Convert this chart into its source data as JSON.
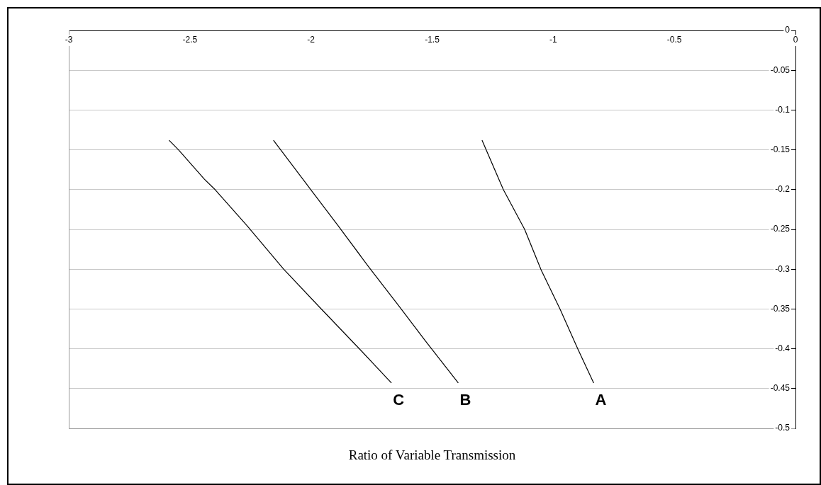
{
  "chart_data": {
    "type": "line",
    "xlabel": "Ratio of Variable Transmission",
    "series": [
      {
        "name": "A",
        "color": "#000000",
        "x": [
          -1.294,
          -1.206,
          -1.118,
          -1.05,
          -0.972,
          -0.899,
          -0.833
        ],
        "values": [
          -0.138,
          -0.2,
          -0.25,
          -0.301,
          -0.35,
          -0.4,
          -0.443
        ]
      },
      {
        "name": "B",
        "color": "#000000",
        "x": [
          -2.155,
          -2.001,
          -1.889,
          -1.762,
          -1.635,
          -1.528,
          -1.392
        ],
        "values": [
          -0.138,
          -0.2,
          -0.245,
          -0.297,
          -0.347,
          -0.39,
          -0.443
        ]
      },
      {
        "name": "C",
        "color": "#000000",
        "x": [
          -2.586,
          -2.547,
          -2.44,
          -2.396,
          -2.265,
          -2.113,
          -1.967,
          -1.791,
          -1.668
        ],
        "values": [
          -0.138,
          -0.15,
          -0.187,
          -0.2,
          -0.245,
          -0.3,
          -0.347,
          -0.403,
          -0.443
        ]
      }
    ],
    "xlim": [
      -3,
      0
    ],
    "xticks": [
      -3,
      -2.5,
      -2,
      -1.5,
      -1,
      -0.5,
      0
    ],
    "ylim": [
      -0.5,
      0
    ],
    "yticks": [
      0,
      -0.05,
      -0.1,
      -0.15,
      -0.2,
      -0.25,
      -0.3,
      -0.35,
      -0.4,
      -0.45,
      -0.5
    ],
    "grid": "y",
    "marker": "none",
    "line_style": "solid"
  }
}
